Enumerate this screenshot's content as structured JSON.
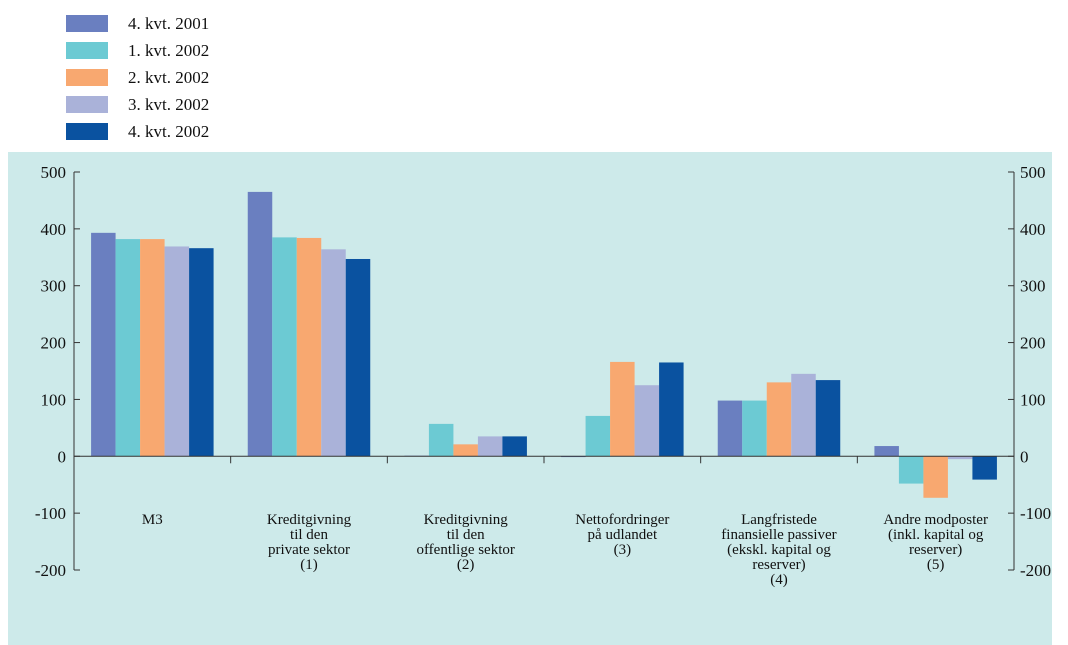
{
  "colors": {
    "panel_bg": "#cdeaea",
    "axis": "#333333",
    "series": [
      "#6a7fc0",
      "#6ccad3",
      "#f8a870",
      "#aab2d9",
      "#0a52a0"
    ]
  },
  "chart_data": {
    "type": "bar",
    "title": "",
    "xlabel": "",
    "ylabel": "",
    "ylim": [
      -200,
      500
    ],
    "yticks": [
      -200,
      -100,
      0,
      100,
      200,
      300,
      400,
      500
    ],
    "grid": false,
    "legend_position": "top-left",
    "categories": [
      [
        "M3"
      ],
      [
        "Kreditgivning",
        "til den",
        "private sektor",
        "(1)"
      ],
      [
        "Kreditgivning",
        "til den",
        "offentlige sektor",
        "(2)"
      ],
      [
        "Nettofordringer",
        "på udlandet",
        "(3)"
      ],
      [
        "Langfristede",
        "finansielle passiver",
        "(ekskl. kapital og",
        "reserver)",
        "(4)"
      ],
      [
        "Andre modposter",
        "(inkl. kapital og",
        "reserver)",
        "(5)"
      ]
    ],
    "series": [
      {
        "name": "4. kvt. 2001",
        "values": [
          393,
          465,
          1,
          0,
          98,
          18
        ]
      },
      {
        "name": "1. kvt. 2002",
        "values": [
          382,
          385,
          57,
          71,
          98,
          -48
        ]
      },
      {
        "name": "2. kvt. 2002",
        "values": [
          382,
          384,
          21,
          166,
          130,
          -73
        ]
      },
      {
        "name": "3. kvt. 2002",
        "values": [
          369,
          364,
          35,
          125,
          145,
          -5
        ]
      },
      {
        "name": "4. kvt. 2002",
        "values": [
          366,
          347,
          35,
          165,
          134,
          -41
        ]
      }
    ]
  }
}
